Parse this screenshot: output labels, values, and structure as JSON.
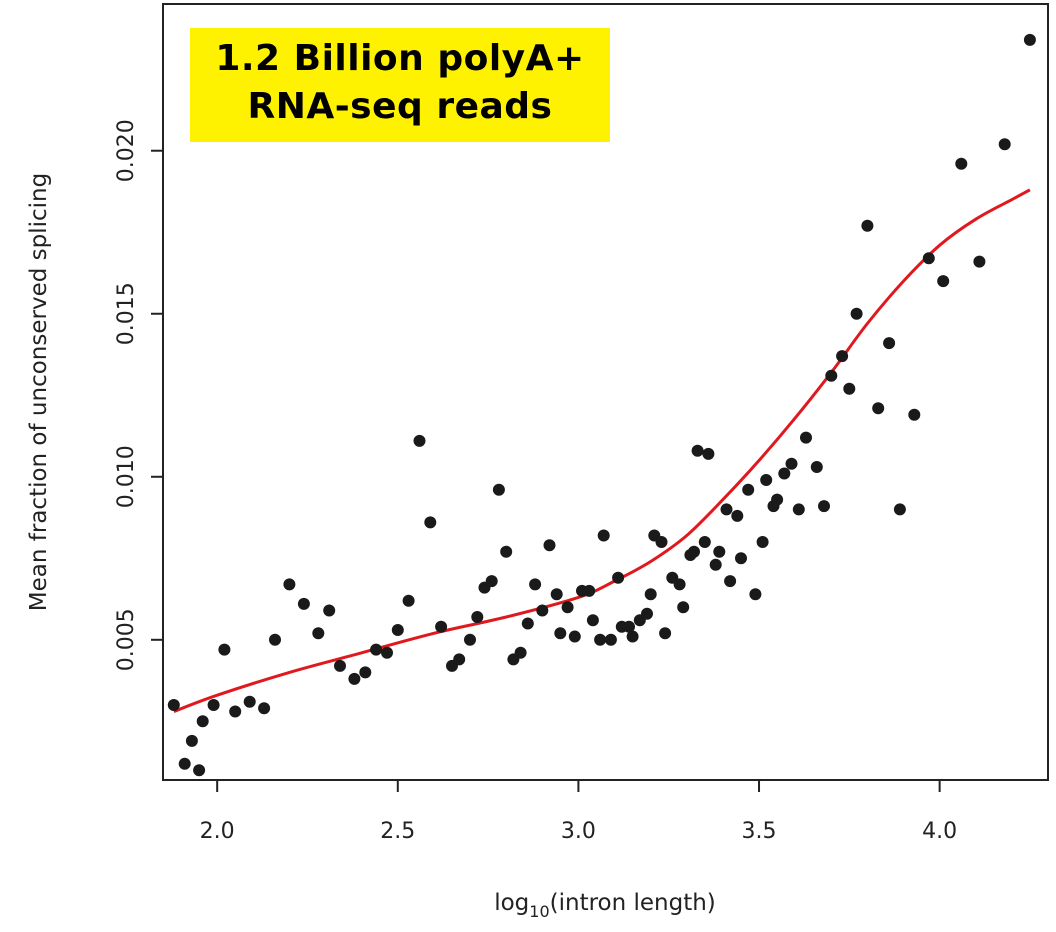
{
  "chart_data": {
    "type": "scatter",
    "xlabel_main": "log",
    "xlabel_sub": "10",
    "xlabel_tail": "(intron length)",
    "ylabel": "Mean fraction of unconserved splicing",
    "xlim": [
      1.85,
      4.3
    ],
    "ylim": [
      0.0007,
      0.0245
    ],
    "x_ticks": [
      2.0,
      2.5,
      3.0,
      3.5,
      4.0
    ],
    "x_tick_labels": [
      "2.0",
      "2.5",
      "3.0",
      "3.5",
      "4.0"
    ],
    "y_ticks": [
      0.005,
      0.01,
      0.015,
      0.02
    ],
    "y_tick_labels": [
      "0.005",
      "0.010",
      "0.015",
      "0.020"
    ],
    "grid": false,
    "annotation": [
      "1.2 Billion polyA+",
      "RNA-seq reads"
    ],
    "colors": {
      "points": "#1a1a1a",
      "trend": "#e0191e",
      "annotation_bg": "#fff200"
    },
    "points": [
      [
        1.88,
        0.003
      ],
      [
        1.91,
        0.0012
      ],
      [
        1.93,
        0.0019
      ],
      [
        1.95,
        0.001
      ],
      [
        1.96,
        0.0025
      ],
      [
        1.99,
        0.003
      ],
      [
        2.02,
        0.0047
      ],
      [
        2.05,
        0.0028
      ],
      [
        2.09,
        0.0031
      ],
      [
        2.13,
        0.0029
      ],
      [
        2.16,
        0.005
      ],
      [
        2.2,
        0.0067
      ],
      [
        2.24,
        0.0061
      ],
      [
        2.28,
        0.0052
      ],
      [
        2.31,
        0.0059
      ],
      [
        2.34,
        0.0042
      ],
      [
        2.38,
        0.0038
      ],
      [
        2.41,
        0.004
      ],
      [
        2.44,
        0.0047
      ],
      [
        2.47,
        0.0046
      ],
      [
        2.5,
        0.0053
      ],
      [
        2.53,
        0.0062
      ],
      [
        2.56,
        0.0111
      ],
      [
        2.59,
        0.0086
      ],
      [
        2.62,
        0.0054
      ],
      [
        2.65,
        0.0042
      ],
      [
        2.67,
        0.0044
      ],
      [
        2.7,
        0.005
      ],
      [
        2.72,
        0.0057
      ],
      [
        2.74,
        0.0066
      ],
      [
        2.76,
        0.0068
      ],
      [
        2.78,
        0.0096
      ],
      [
        2.8,
        0.0077
      ],
      [
        2.82,
        0.0044
      ],
      [
        2.84,
        0.0046
      ],
      [
        2.86,
        0.0055
      ],
      [
        2.88,
        0.0067
      ],
      [
        2.9,
        0.0059
      ],
      [
        2.92,
        0.0079
      ],
      [
        2.94,
        0.0064
      ],
      [
        2.95,
        0.0052
      ],
      [
        2.97,
        0.006
      ],
      [
        2.99,
        0.0051
      ],
      [
        3.01,
        0.0065
      ],
      [
        3.03,
        0.0065
      ],
      [
        3.04,
        0.0056
      ],
      [
        3.06,
        0.005
      ],
      [
        3.07,
        0.0082
      ],
      [
        3.09,
        0.005
      ],
      [
        3.11,
        0.0069
      ],
      [
        3.12,
        0.0054
      ],
      [
        3.14,
        0.0054
      ],
      [
        3.15,
        0.0051
      ],
      [
        3.17,
        0.0056
      ],
      [
        3.19,
        0.0058
      ],
      [
        3.2,
        0.0064
      ],
      [
        3.21,
        0.0082
      ],
      [
        3.23,
        0.008
      ],
      [
        3.24,
        0.0052
      ],
      [
        3.26,
        0.0069
      ],
      [
        3.28,
        0.0067
      ],
      [
        3.29,
        0.006
      ],
      [
        3.31,
        0.0076
      ],
      [
        3.32,
        0.0077
      ],
      [
        3.33,
        0.0108
      ],
      [
        3.35,
        0.008
      ],
      [
        3.36,
        0.0107
      ],
      [
        3.38,
        0.0073
      ],
      [
        3.39,
        0.0077
      ],
      [
        3.41,
        0.009
      ],
      [
        3.42,
        0.0068
      ],
      [
        3.44,
        0.0088
      ],
      [
        3.45,
        0.0075
      ],
      [
        3.47,
        0.0096
      ],
      [
        3.49,
        0.0064
      ],
      [
        3.51,
        0.008
      ],
      [
        3.52,
        0.0099
      ],
      [
        3.54,
        0.0091
      ],
      [
        3.55,
        0.0093
      ],
      [
        3.57,
        0.0101
      ],
      [
        3.59,
        0.0104
      ],
      [
        3.61,
        0.009
      ],
      [
        3.63,
        0.0112
      ],
      [
        3.66,
        0.0103
      ],
      [
        3.68,
        0.0091
      ],
      [
        3.7,
        0.0131
      ],
      [
        3.73,
        0.0137
      ],
      [
        3.75,
        0.0127
      ],
      [
        3.77,
        0.015
      ],
      [
        3.8,
        0.0177
      ],
      [
        3.83,
        0.0121
      ],
      [
        3.86,
        0.0141
      ],
      [
        3.89,
        0.009
      ],
      [
        3.93,
        0.0119
      ],
      [
        3.97,
        0.0167
      ],
      [
        4.01,
        0.016
      ],
      [
        4.06,
        0.0196
      ],
      [
        4.11,
        0.0166
      ],
      [
        4.18,
        0.0202
      ],
      [
        4.25,
        0.0234
      ]
    ],
    "trend": [
      [
        1.88,
        0.0028
      ],
      [
        2.0,
        0.0033
      ],
      [
        2.2,
        0.004
      ],
      [
        2.4,
        0.0046
      ],
      [
        2.6,
        0.0052
      ],
      [
        2.8,
        0.0057
      ],
      [
        3.0,
        0.0063
      ],
      [
        3.1,
        0.0068
      ],
      [
        3.2,
        0.0074
      ],
      [
        3.3,
        0.0082
      ],
      [
        3.4,
        0.0093
      ],
      [
        3.5,
        0.0105
      ],
      [
        3.6,
        0.0118
      ],
      [
        3.7,
        0.0132
      ],
      [
        3.8,
        0.0147
      ],
      [
        3.9,
        0.016
      ],
      [
        4.0,
        0.0171
      ],
      [
        4.1,
        0.0179
      ],
      [
        4.2,
        0.0185
      ],
      [
        4.25,
        0.0188
      ]
    ]
  }
}
